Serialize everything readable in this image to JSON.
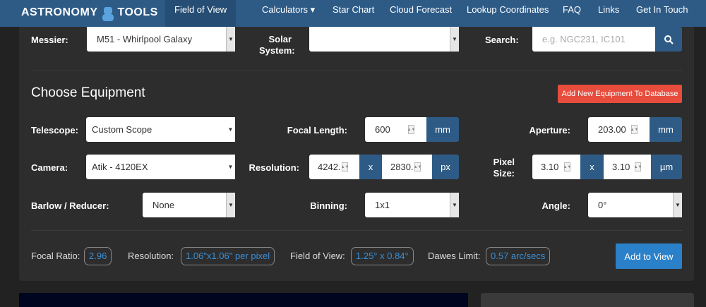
{
  "nav": {
    "logo": "ASTRONOMY TOOLS",
    "items": [
      "Field of View",
      "Calculators ▾",
      "Star Chart",
      "Cloud Forecast",
      "Lookup Coordinates",
      "FAQ",
      "Links",
      "Get In Touch"
    ]
  },
  "object": {
    "messier_label": "Messier:",
    "messier_value": "M51 - Whirlpool Galaxy",
    "solar_label_1": "Solar",
    "solar_label_2": "System:",
    "solar_value": "",
    "search_label": "Search:",
    "search_placeholder": "e.g. NGC231, IC101"
  },
  "equipment": {
    "title": "Choose Equipment",
    "add_new": "Add New Equipment To Database",
    "telescope_label": "Telescope:",
    "telescope_value": "Custom Scope",
    "focal_label": "Focal Length:",
    "focal_value": "600",
    "focal_unit": "mm",
    "aperture_label": "Aperture:",
    "aperture_value": "203.00",
    "aperture_unit": "mm",
    "camera_label": "Camera:",
    "camera_value": "Atik - 4120EX",
    "resolution_label": "Resolution:",
    "res_x": "4242.",
    "res_sep": "x",
    "res_y": "2830.",
    "res_unit": "px",
    "pixel_label_1": "Pixel",
    "pixel_label_2": "Size:",
    "pix_x": "3.10",
    "pix_sep": "x",
    "pix_y": "3.10",
    "pix_unit": "µm",
    "barlow_label": "Barlow / Reducer:",
    "barlow_value": "None",
    "binning_label": "Binning:",
    "binning_value": "1x1",
    "angle_label": "Angle:",
    "angle_value": "0°"
  },
  "results": {
    "focal_ratio_label": "Focal Ratio:",
    "focal_ratio": "2.96",
    "resolution_label": "Resolution:",
    "resolution": "1.06\"x1.06\" per pixel",
    "fov_label": "Field of View:",
    "fov": "1.25° x 0.84°",
    "dawes_label": "Dawes Limit:",
    "dawes": "0.57 arc/secs",
    "add_to_view": "Add to View"
  },
  "colors": {
    "nav": "#2e5b86",
    "accent": "#2a80c9",
    "danger": "#e74c3c",
    "panel": "#2d2d2d"
  }
}
